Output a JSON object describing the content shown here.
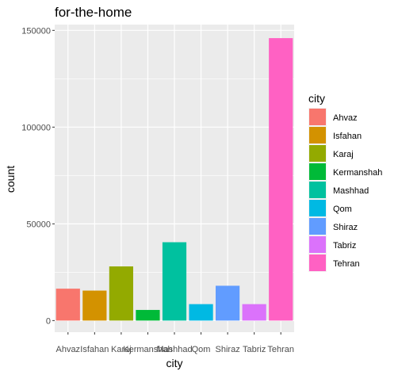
{
  "chart_data": {
    "type": "bar",
    "title": "for-the-home",
    "xlabel": "city",
    "ylabel": "count",
    "categories": [
      "Ahvaz",
      "Isfahan",
      "Karaj",
      "Kermanshah",
      "Mashhad",
      "Qom",
      "Shiraz",
      "Tabriz",
      "Tehran"
    ],
    "values": [
      16500,
      15500,
      28000,
      5500,
      40500,
      8500,
      18000,
      8500,
      146000
    ],
    "colors": [
      "#F8766D",
      "#D39200",
      "#93AA00",
      "#00BA38",
      "#00C19F",
      "#00B9E3",
      "#619CFF",
      "#DB72FB",
      "#FF61C3"
    ],
    "ylim": [
      -6000,
      153000
    ],
    "yticks": [
      0,
      50000,
      100000,
      150000
    ],
    "ytick_labels": [
      "0",
      "50000",
      "100000",
      "150000"
    ],
    "grid": true,
    "legend": {
      "title": "city",
      "position": "right",
      "entries": [
        "Ahvaz",
        "Isfahan",
        "Karaj",
        "Kermanshah",
        "Mashhad",
        "Qom",
        "Shiraz",
        "Tabriz",
        "Tehran"
      ]
    }
  }
}
